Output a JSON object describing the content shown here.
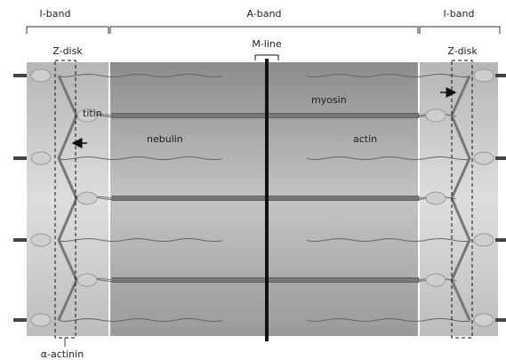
{
  "bands": [
    "I-band",
    "A-band",
    "I-band"
  ],
  "z_disks": [
    "Z-disk",
    "Z-disk"
  ],
  "m_line": "M-line",
  "labels": {
    "titin": "titin",
    "myosin": "myosin",
    "nebulin": "nebulin",
    "actin": "actin",
    "alpha_actinin": "α-actinin"
  }
}
